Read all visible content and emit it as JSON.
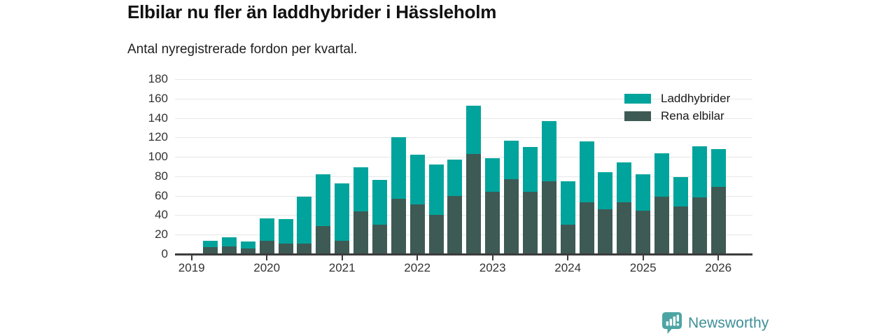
{
  "page": {
    "title": "Elbilar nu fler än laddhybrider i Hässleholm",
    "subtitle": "Antal nyregistrerade fordon per kvartal."
  },
  "legend": {
    "items": [
      {
        "label": "Laddhybrider",
        "color": "#00A49C"
      },
      {
        "label": "Rena elbilar",
        "color": "#3E5A54"
      }
    ]
  },
  "footer": {
    "brand": "Newsworthy",
    "brand_color": "#3E8F97",
    "icon": "bar-chart-speech-bubble-icon",
    "icon_color": "#4CA5A3"
  },
  "colors": {
    "laddhybrider": "#00A49C",
    "rena_elbilar": "#3E5A54",
    "gridline": "#E7E7E7",
    "axis": "#3C3C3C",
    "tick_text": "#333333"
  },
  "chart_data": {
    "type": "bar",
    "stacked": true,
    "title": "Elbilar nu fler än laddhybrider i Hässleholm",
    "subtitle": "Antal nyregistrerade fordon per kvartal.",
    "xlabel": "",
    "ylabel": "",
    "ylim": [
      0,
      180
    ],
    "ytick_step": 20,
    "grid": true,
    "legend_position": "top-right",
    "x_years": [
      "2019",
      "2020",
      "2021",
      "2022",
      "2023",
      "2024",
      "2025",
      "2026"
    ],
    "first_quarter_slot": 1,
    "quarters": [
      "2019 Q2",
      "2019 Q3",
      "2019 Q4",
      "2020 Q1",
      "2020 Q2",
      "2020 Q3",
      "2020 Q4",
      "2021 Q1",
      "2021 Q2",
      "2021 Q3",
      "2021 Q4",
      "2022 Q1",
      "2022 Q2",
      "2022 Q3",
      "2022 Q4",
      "2023 Q1",
      "2023 Q2",
      "2023 Q3",
      "2023 Q4",
      "2024 Q1",
      "2024 Q2",
      "2024 Q3",
      "2024 Q4",
      "2025 Q1",
      "2025 Q2",
      "2025 Q3",
      "2025 Q4",
      "2026 Q1"
    ],
    "series": [
      {
        "name": "Rena elbilar",
        "color": "#3E5A54",
        "stack_order": "bottom",
        "values": [
          7,
          8,
          6,
          14,
          11,
          11,
          29,
          14,
          44,
          30,
          57,
          51,
          40,
          60,
          103,
          64,
          77,
          64,
          75,
          30,
          53,
          46,
          53,
          45,
          59,
          49,
          58,
          69
        ]
      },
      {
        "name": "Laddhybrider",
        "color": "#00A49C",
        "stack_order": "top",
        "values": [
          7,
          9,
          7,
          23,
          25,
          48,
          53,
          59,
          45,
          46,
          63,
          51,
          52,
          37,
          50,
          35,
          40,
          46,
          62,
          45,
          63,
          38,
          41,
          37,
          45,
          30,
          53,
          39
        ]
      }
    ],
    "totals": [
      14,
      17,
      13,
      37,
      36,
      59,
      82,
      73,
      89,
      76,
      120,
      102,
      92,
      97,
      153,
      99,
      117,
      110,
      137,
      75,
      116,
      84,
      94,
      82,
      104,
      79,
      111,
      108
    ]
  }
}
